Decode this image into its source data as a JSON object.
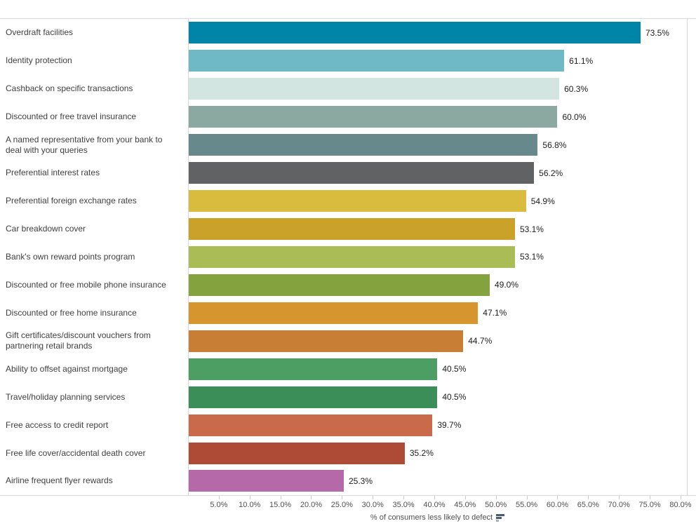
{
  "chart_data": {
    "type": "bar",
    "orientation": "horizontal",
    "title": "",
    "xlabel": "% of consumers less likely to defect",
    "ylabel": "",
    "legend": null,
    "grid": false,
    "axis": {
      "min": 0,
      "max": 80,
      "tick_step": 5,
      "tick_labels": [
        "5.0%",
        "10.0%",
        "15.0%",
        "20.0%",
        "25.0%",
        "30.0%",
        "35.0%",
        "40.0%",
        "45.0%",
        "50.0%",
        "55.0%",
        "60.0%",
        "65.0%",
        "70.0%",
        "75.0%",
        "80.0%"
      ]
    },
    "items": [
      {
        "label": "Overdraft facilities",
        "value": 73.5,
        "value_label": "73.5%",
        "color": "#0084a8"
      },
      {
        "label": "Identity protection",
        "value": 61.1,
        "value_label": "61.1%",
        "color": "#6fb9c7"
      },
      {
        "label": "Cashback on specific transactions",
        "value": 60.3,
        "value_label": "60.3%",
        "color": "#d3e5e1"
      },
      {
        "label": "Discounted or free travel insurance",
        "value": 60.0,
        "value_label": "60.0%",
        "color": "#8ca9a1"
      },
      {
        "label": "A named representative from your bank to deal with your queries",
        "value": 56.8,
        "value_label": "56.8%",
        "color": "#67898c"
      },
      {
        "label": "Preferential interest rates",
        "value": 56.2,
        "value_label": "56.2%",
        "color": "#616263"
      },
      {
        "label": "Preferential foreign exchange rates",
        "value": 54.9,
        "value_label": "54.9%",
        "color": "#d9bc3d"
      },
      {
        "label": "Car breakdown cover",
        "value": 53.1,
        "value_label": "53.1%",
        "color": "#caa22a"
      },
      {
        "label": "Bank's own reward points program",
        "value": 53.1,
        "value_label": "53.1%",
        "color": "#a9bc55"
      },
      {
        "label": "Discounted or free mobile phone insurance",
        "value": 49.0,
        "value_label": "49.0%",
        "color": "#84a33f"
      },
      {
        "label": "Discounted or free home insurance",
        "value": 47.1,
        "value_label": "47.1%",
        "color": "#d79530"
      },
      {
        "label": "Gift certificates/discount vouchers from partnering retail brands",
        "value": 44.7,
        "value_label": "44.7%",
        "color": "#c87e35"
      },
      {
        "label": "Ability to offset against mortgage",
        "value": 40.5,
        "value_label": "40.5%",
        "color": "#4d9e62"
      },
      {
        "label": "Travel/holiday planning services",
        "value": 40.5,
        "value_label": "40.5%",
        "color": "#3b8e58"
      },
      {
        "label": "Free access to credit report",
        "value": 39.7,
        "value_label": "39.7%",
        "color": "#c96a4b"
      },
      {
        "label": "Free life cover/accidental death cover",
        "value": 35.2,
        "value_label": "35.2%",
        "color": "#ae4b36"
      },
      {
        "label": "Airline frequent flyer rewards",
        "value": 25.3,
        "value_label": "25.3%",
        "color": "#b569a8"
      }
    ]
  },
  "axis_footer": {
    "title": "% of consumers less likely to defect",
    "sort_icon": "sort-descending-bars-icon"
  },
  "colors": {
    "background": "#ffffff",
    "axis_line": "#d8d8d8",
    "tick_mark": "#c9c9c9",
    "category_label_text": "#3f3f3f",
    "value_label_text": "#1c1c1c",
    "tick_label_text": "#4f4f4f",
    "axis_title_text": "#4f4f4f",
    "sort_icon_dark": "#4a5b6d",
    "sort_icon_light": "#9db3c8"
  }
}
